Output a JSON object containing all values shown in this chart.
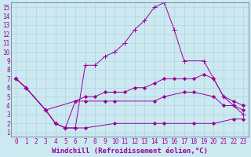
{
  "background_color": "#cce8f0",
  "grid_color": "#b0d4e0",
  "line_color": "#990099",
  "xlabel": "Windchill (Refroidissement éolien,°C)",
  "xlim": [
    -0.5,
    23.5
  ],
  "ylim": [
    0.5,
    15.5
  ],
  "xticks": [
    0,
    1,
    2,
    3,
    4,
    5,
    6,
    7,
    8,
    9,
    10,
    11,
    12,
    13,
    14,
    15,
    16,
    17,
    18,
    19,
    20,
    21,
    22,
    23
  ],
  "yticks": [
    1,
    2,
    3,
    4,
    5,
    6,
    7,
    8,
    9,
    10,
    11,
    12,
    13,
    14,
    15
  ],
  "series": [
    {
      "x": [
        0,
        1,
        3,
        4,
        5,
        6,
        7,
        8,
        9,
        10,
        11,
        12,
        13,
        14,
        15,
        16,
        17,
        19,
        20,
        21,
        22,
        23
      ],
      "y": [
        7,
        6,
        3.5,
        2,
        1.5,
        1.5,
        8.5,
        8.5,
        9.5,
        10,
        11,
        12.5,
        13.5,
        15,
        15.5,
        12.5,
        9,
        9,
        7,
        5,
        4,
        3
      ],
      "marker": "+"
    },
    {
      "x": [
        0,
        1,
        3,
        6,
        7,
        8,
        9,
        10,
        11,
        12,
        13,
        14,
        15,
        16,
        17,
        18,
        19,
        20,
        21,
        22,
        23
      ],
      "y": [
        7,
        6,
        3.5,
        4.5,
        5,
        5,
        5.5,
        5.5,
        5.5,
        6,
        6,
        6.5,
        7,
        7,
        7,
        7,
        7.5,
        7,
        5,
        4.5,
        4
      ],
      "marker": "D"
    },
    {
      "x": [
        0,
        1,
        3,
        4,
        5,
        6,
        7,
        9,
        10,
        14,
        15,
        17,
        18,
        20,
        21,
        22,
        23
      ],
      "y": [
        7,
        6,
        3.5,
        2,
        1.5,
        4.5,
        4.5,
        4.5,
        4.5,
        4.5,
        5,
        5.5,
        5.5,
        5,
        4,
        4,
        3.5
      ],
      "marker": "D"
    },
    {
      "x": [
        0,
        1,
        3,
        4,
        5,
        6,
        7,
        10,
        14,
        15,
        18,
        20,
        22,
        23
      ],
      "y": [
        7,
        6,
        3.5,
        2,
        1.5,
        1.5,
        1.5,
        2,
        2,
        2,
        2,
        2,
        2.5,
        2.5
      ],
      "marker": "D"
    }
  ],
  "tick_fontsize": 5.5,
  "label_fontsize": 6.5
}
